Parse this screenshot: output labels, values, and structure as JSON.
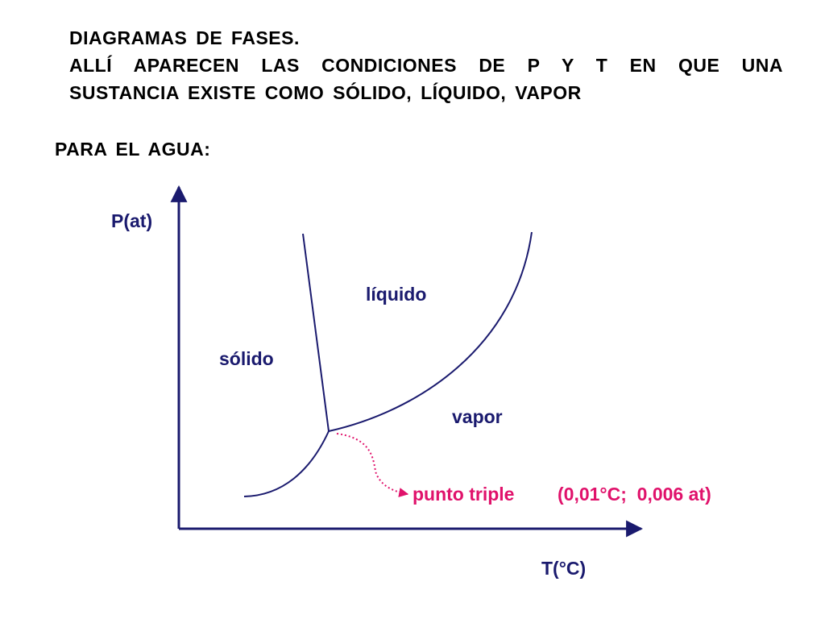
{
  "heading": {
    "title": "DIAGRAMAS  DE  FASES.",
    "line1": "ALLÍ  APARECEN  LAS  CONDICIONES  DE  P  Y  T  EN  QUE  UNA",
    "line2": "SUSTANCIA  EXISTE  COMO  SÓLIDO,  LÍQUIDO,  VAPOR",
    "subtitle": "PARA  EL  AGUA:"
  },
  "diagram": {
    "y_axis_label": "P(at)",
    "x_axis_label": "T(°C)",
    "region_solid": "sólido",
    "region_liquid": "líquido",
    "region_vapor": "vapor",
    "triple_point_label": "punto triple",
    "triple_point_value": "(0,01°C;  0,006 at)"
  },
  "colors": {
    "text": "#000000",
    "diagram_text": "#1a1a6e",
    "curves": "#1a1a6e",
    "accent": "#e0126b"
  }
}
